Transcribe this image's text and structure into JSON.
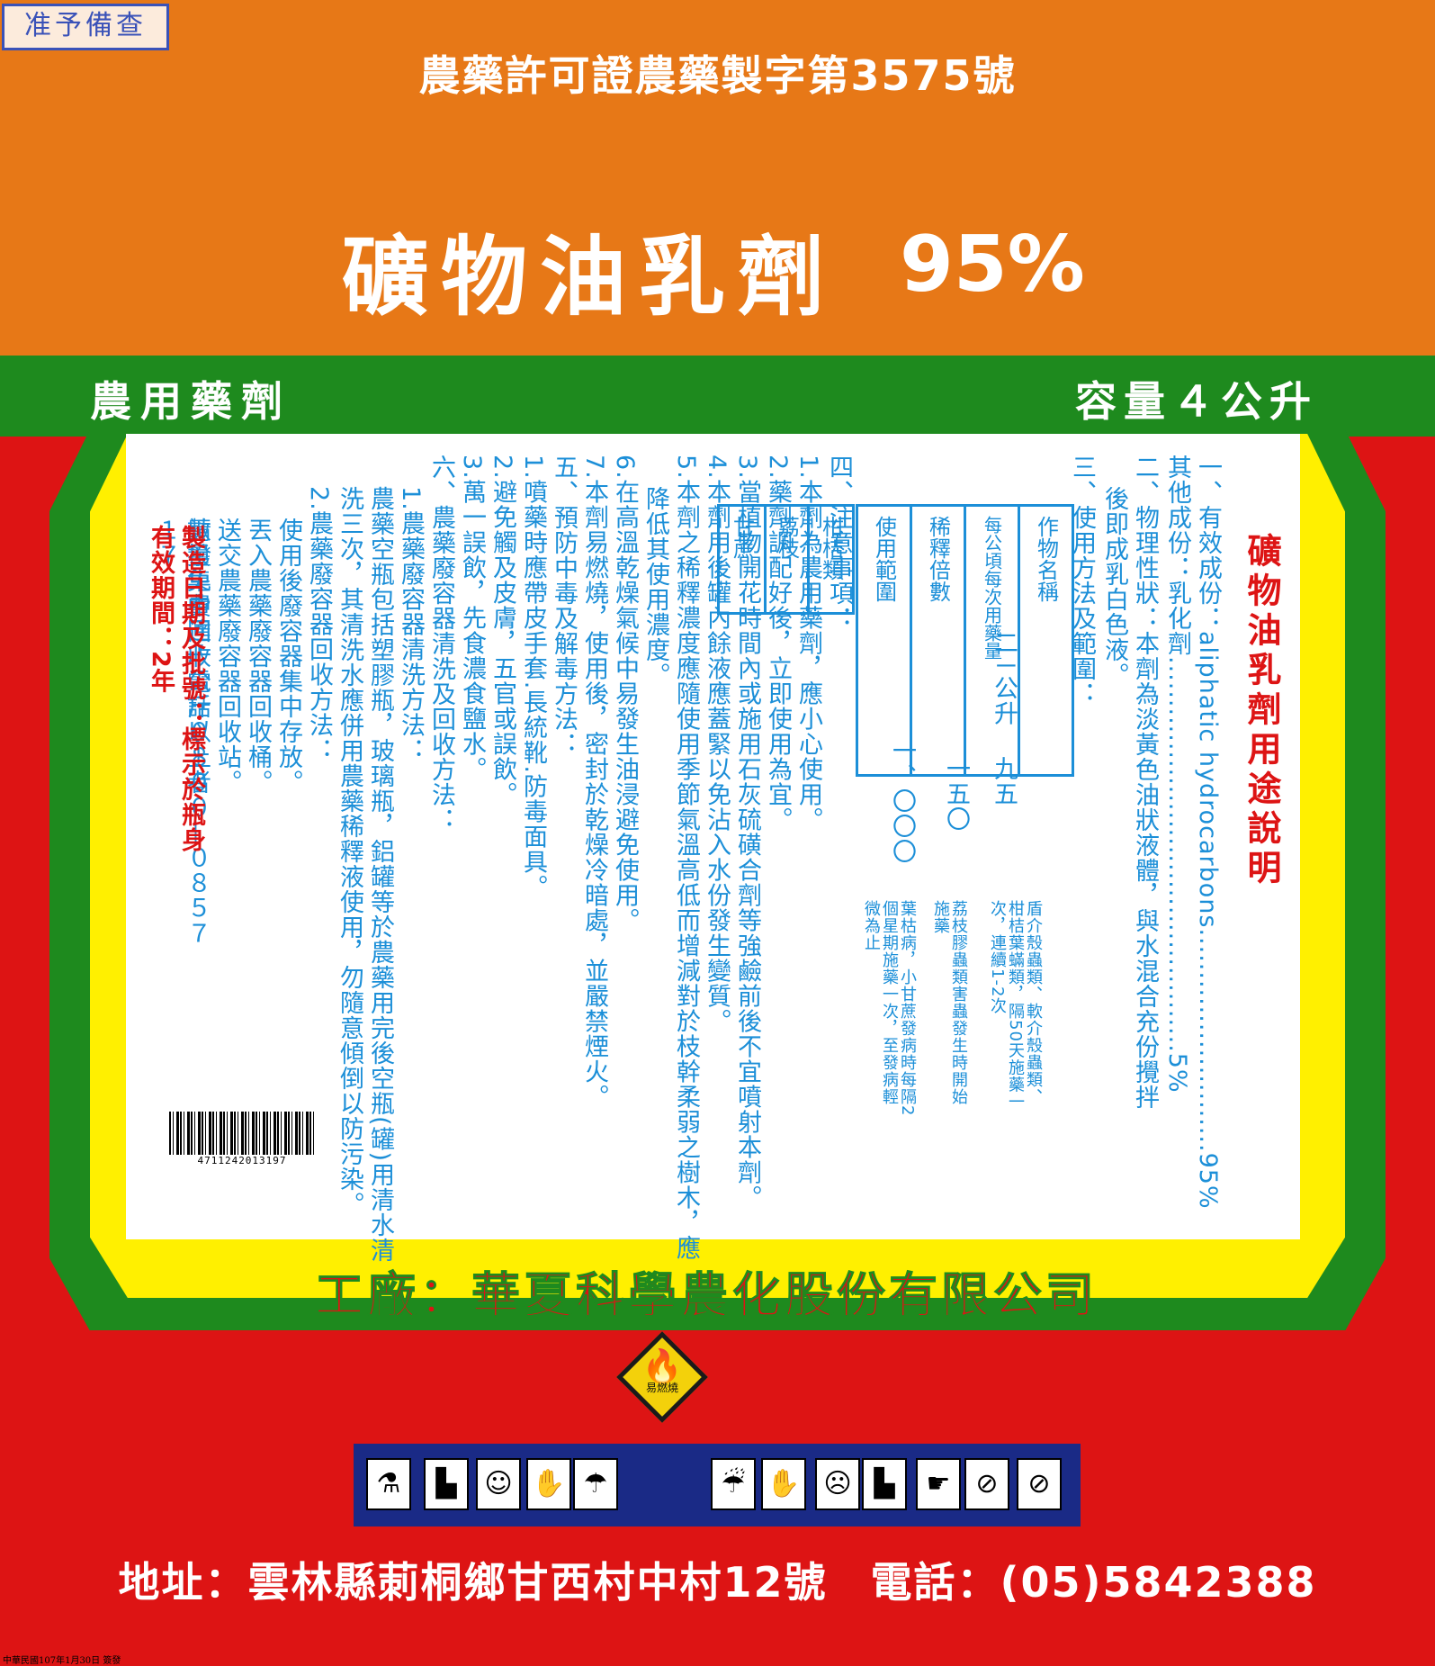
{
  "stamp": "准予備查",
  "license": "農藥許可證農藥製字第3575號",
  "product_name": "礦物油乳劑",
  "concentration": "95%",
  "category": "農用藥劑",
  "capacity": "容量４公升",
  "usage_title": "礦物油乳劑用途說明",
  "section1": {
    "line1": "一、有效成份：aliphatic hydrocarbons..........................95%",
    "line2": "其他成份：乳化劑..............................................5%"
  },
  "section2": {
    "line1": "二、物理性狀：本劑為淡黃色油狀液體，與水混合充份攪拌",
    "line2": "後即成乳白色液。"
  },
  "section3_title": "三、使用方法及範圍：",
  "dose_table": {
    "headers": [
      "作物名稱",
      "每公頃每次用藥量",
      "稀釋倍數",
      "使用範圍"
    ],
    "rows": [
      {
        "crop": "柑桔類",
        "dose": "二ㄧ公升",
        "dilution": "九五",
        "scope": "盾介殼蟲類、軟介殼蟲類、柑桔葉蟎類，隔50天施藥一次，連續1-2次"
      },
      {
        "crop": "荔枝",
        "dose": "",
        "dilution": "一五〇",
        "scope": "荔枝膠蟲類害蟲發生時開始施藥"
      },
      {
        "crop": "甘蔗",
        "dose": "",
        "dilution": "一、〇〇〇",
        "scope": "葉枯病，小甘蔗發病時每隔2個星期施藥一次，至發病輕微為止"
      }
    ]
  },
  "section4": {
    "title": "四、注意事項：",
    "items": [
      "1.本劑為農用藥劑，應小心使用。",
      "2.藥劑調配好後，立即使用為宜。",
      "3.當植物開花時間內或施用石灰硫磺合劑等強鹼前後不宜噴射本劑。",
      "4.本劑用後罐內餘液應蓋緊以免沾入水份發生變質。",
      "5.本劑之稀釋濃度應隨使用季節氣溫高低而增減對於枝幹柔弱之樹木，應",
      "降低其使用濃度。",
      "6.在高溫乾燥氣候中易發生油浸避免使用。",
      "7.本劑易燃燒，使用後，密封於乾燥冷暗處，並嚴禁煙火。"
    ]
  },
  "section5": {
    "title": "五、預防中毒及解毒方法：",
    "items": [
      "1.噴藥時應帶皮手套.長統靴.防毒面具。",
      "2.避免觸及皮膚，五官或誤飲。",
      "3.萬一誤飲，先食濃食鹽水。"
    ]
  },
  "section6": {
    "title": "六、農藥廢容器清洗及回收方法：",
    "items": [
      "1.農藥廢容器清洗方法：",
      "農藥空瓶包括塑膠瓶，玻璃瓶，鋁罐等於農藥用完後空瓶(罐)用清水清",
      "洗三次，其清洗水應併用農藥稀釋液使用，勿隨意傾倒以防污染。",
      "2.農藥廢容器回收方法：",
      "使用後廢容器集中存放。",
      "丟入農藥廢容器回收桶。",
      "送交農藥廢容器回收站。",
      "數量集中達十公斤以上者",
      "請撥免費回收電話０８００—０８５７１７"
    ]
  },
  "batch_line": "製造日期及批號：標示於瓶身",
  "expiry_line": "有效期間：2年",
  "barcode_number": "4711242013197",
  "factory": "工廠：華夏科學農化股份有限公司",
  "hazard_label": "易燃燒",
  "pictograms": {
    "left": [
      "mixing-icon",
      "boots-icon",
      "goggles-icon",
      "gloves-icon",
      "wash-icon"
    ],
    "right": [
      "spraying-icon",
      "gloves-icon",
      "mask-icon",
      "boots-icon",
      "wash-hands-icon",
      "no-livestock-icon",
      "no-fish-icon"
    ]
  },
  "address": "地址：雲林縣莿桐鄉甘西村中村12號　電話：(05)5842388",
  "footnote": "中華民國107年1月30日 簽發",
  "colors": {
    "orange": "#e77817",
    "green": "#1e8a1e",
    "red": "#dd1414",
    "yellow": "#fff000",
    "blue_text": "#1c8fd8",
    "navy": "#1a2a86"
  }
}
